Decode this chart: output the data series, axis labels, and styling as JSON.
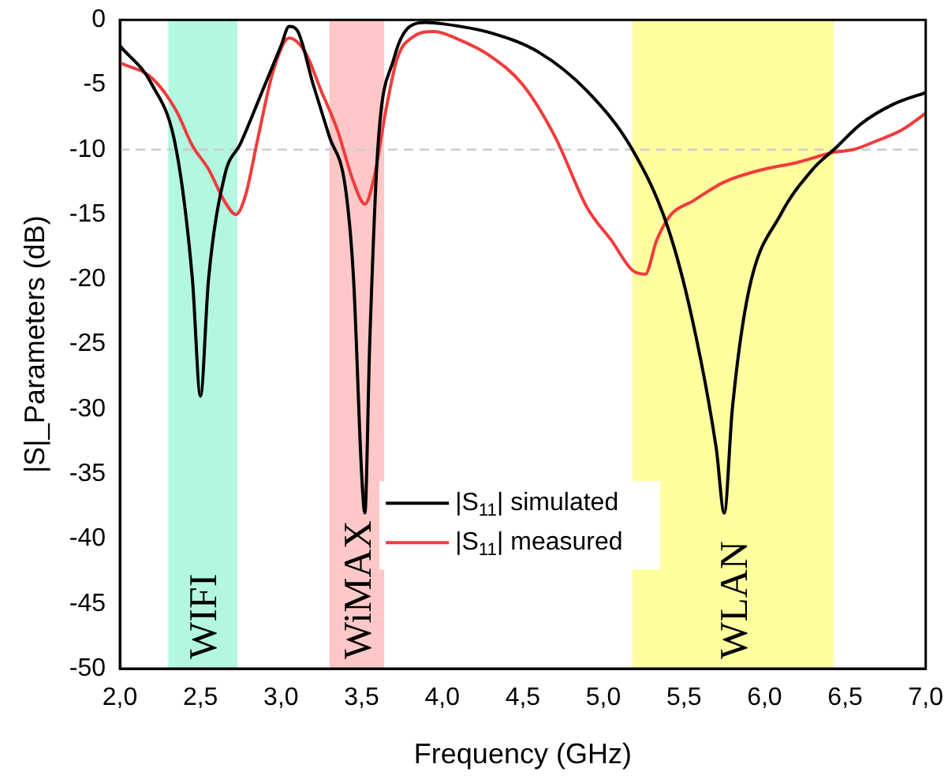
{
  "chart_data": {
    "type": "line",
    "xlabel": "Frequency (GHz)",
    "ylabel": "|S|_Parameters (dB)",
    "xlim": [
      2,
      7
    ],
    "ylim": [
      -50,
      0
    ],
    "xticks": [
      {
        "value": 2,
        "label": "2,0"
      },
      {
        "value": 2.5,
        "label": "2,5"
      },
      {
        "value": 3,
        "label": "3,0"
      },
      {
        "value": 3.5,
        "label": "3,5"
      },
      {
        "value": 4,
        "label": "4,0"
      },
      {
        "value": 4.5,
        "label": "4,5"
      },
      {
        "value": 5,
        "label": "5,0"
      },
      {
        "value": 5.5,
        "label": "5,5"
      },
      {
        "value": 6,
        "label": "6,0"
      },
      {
        "value": 6.5,
        "label": "6,5"
      },
      {
        "value": 7,
        "label": "7,0"
      }
    ],
    "yticks": [
      0,
      -5,
      -10,
      -15,
      -20,
      -25,
      -30,
      -35,
      -40,
      -45,
      -50
    ],
    "grid": false,
    "legend": "bottom",
    "marker": "none",
    "line_style": "solid",
    "series": [
      {
        "name": "|S$_{11}$| simulated",
        "color": "#000000",
        "x": [
          2.0,
          2.2,
          2.35,
          2.45,
          2.5,
          2.55,
          2.65,
          2.75,
          2.9,
          3.0,
          3.05,
          3.1,
          3.2,
          3.3,
          3.4,
          3.45,
          3.5,
          3.52,
          3.55,
          3.6,
          3.7,
          3.8,
          3.9,
          4.0,
          4.3,
          4.6,
          4.9,
          5.18,
          5.4,
          5.55,
          5.7,
          5.75,
          5.8,
          5.9,
          6.1,
          6.3,
          6.43,
          6.6,
          6.8,
          7.0
        ],
        "values": [
          -2,
          -5,
          -10,
          -20,
          -29,
          -20,
          -12,
          -9.5,
          -5,
          -2,
          -0.5,
          -0.8,
          -5,
          -9,
          -13,
          -20,
          -35,
          -38,
          -25,
          -10,
          -3,
          -0.5,
          -0.2,
          -0.3,
          -1,
          -2.5,
          -5.5,
          -10,
          -16,
          -23,
          -33,
          -38,
          -30,
          -21,
          -15,
          -11.5,
          -10,
          -8,
          -6.5,
          -5.6
        ]
      },
      {
        "name": "|S$_{11}$| measured",
        "color": "#f03c3c",
        "x": [
          2.0,
          2.2,
          2.35,
          2.45,
          2.55,
          2.65,
          2.72,
          2.78,
          2.85,
          2.95,
          3.05,
          3.15,
          3.25,
          3.35,
          3.45,
          3.52,
          3.58,
          3.65,
          3.72,
          3.82,
          3.95,
          4.1,
          4.3,
          4.5,
          4.7,
          4.9,
          5.05,
          5.18,
          5.26,
          5.33,
          5.42,
          5.55,
          5.75,
          6.0,
          6.2,
          6.43,
          6.55,
          6.7,
          6.85,
          7.0
        ],
        "values": [
          -3.3,
          -4.5,
          -7,
          -9.7,
          -11.5,
          -14,
          -15,
          -13.5,
          -9.5,
          -4,
          -1.4,
          -2.5,
          -5.5,
          -8.5,
          -12.5,
          -14.2,
          -12,
          -7,
          -3,
          -1.3,
          -0.9,
          -1.5,
          -2.8,
          -5,
          -9,
          -14.5,
          -17,
          -19.3,
          -19.6,
          -17,
          -15,
          -14,
          -12.5,
          -11.5,
          -11,
          -10.2,
          -10,
          -9.3,
          -8.5,
          -7.2
        ]
      }
    ],
    "ref_lines": [
      {
        "axis": "y",
        "value": -10,
        "color": "#cccccc",
        "line_style": "dashed"
      }
    ],
    "bands": [
      {
        "axis": "x",
        "from": 2.3,
        "to": 2.73,
        "label": "WIFI",
        "color": "#b3f7e1"
      },
      {
        "axis": "x",
        "from": 3.3,
        "to": 3.64,
        "label": "WiMAX",
        "color": "#ffc8c8"
      },
      {
        "axis": "x",
        "from": 5.18,
        "to": 6.43,
        "label": "WLAN",
        "color": "#ffffa0"
      }
    ]
  }
}
